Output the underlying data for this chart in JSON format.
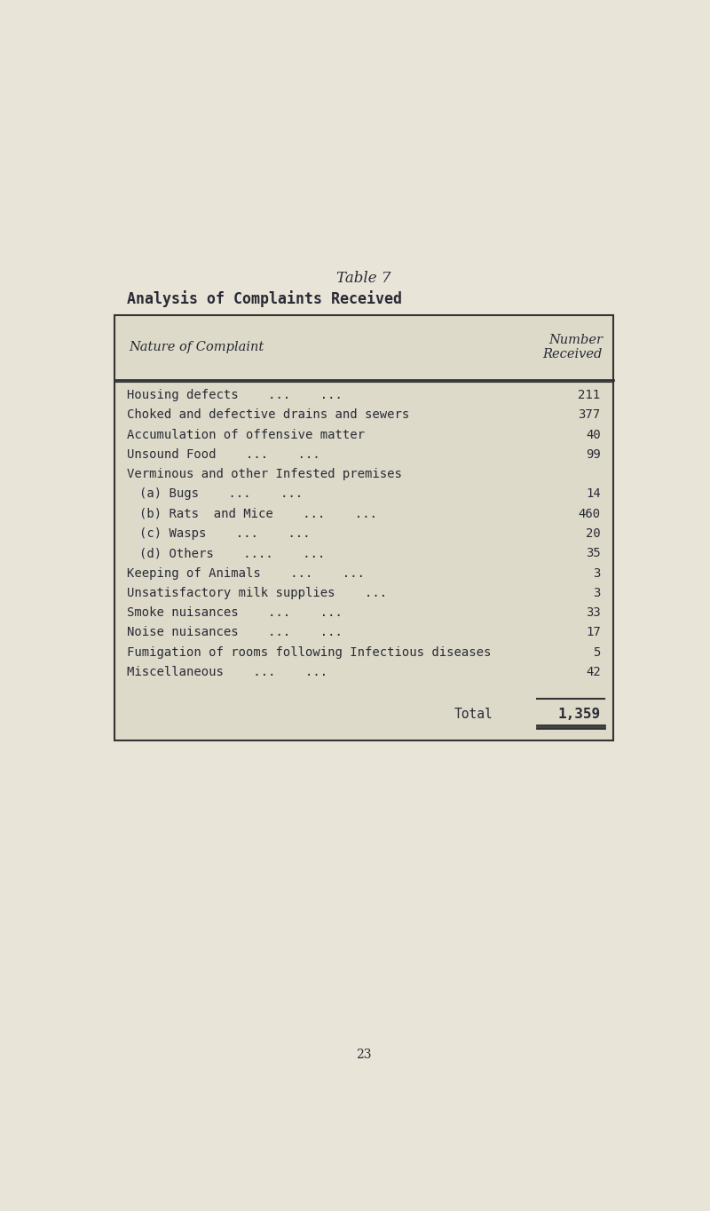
{
  "title": "Table 7",
  "subtitle": "Analysis of Complaints Received",
  "col_header_left": "Nature of Complaint",
  "col_header_right": "Number\nReceived",
  "rows": [
    {
      "label": "Housing defects    ...    ...",
      "value": "211",
      "indent": 0
    },
    {
      "label": "Choked and defective drains and sewers",
      "value": "377",
      "indent": 0
    },
    {
      "label": "Accumulation of offensive matter",
      "value": "40",
      "indent": 0
    },
    {
      "label": "Unsound Food    ...    ...",
      "value": "99",
      "indent": 0
    },
    {
      "label": "Verminous and other Infested premises",
      "value": "",
      "indent": 0
    },
    {
      "label": "(a) Bugs    ...    ...",
      "value": "14",
      "indent": 1
    },
    {
      "label": "(b) Rats  and Mice    ...    ...",
      "value": "460",
      "indent": 1
    },
    {
      "label": "(c) Wasps    ...    ...",
      "value": "20",
      "indent": 1
    },
    {
      "label": "(d) Others    ....    ...",
      "value": "35",
      "indent": 1
    },
    {
      "label": "Keeping of Animals    ...    ...",
      "value": "3",
      "indent": 0
    },
    {
      "label": "Unsatisfactory milk supplies    ...",
      "value": "3",
      "indent": 0
    },
    {
      "label": "Smoke nuisances    ...    ...",
      "value": "33",
      "indent": 0
    },
    {
      "label": "Noise nuisances    ...    ...",
      "value": "17",
      "indent": 0
    },
    {
      "label": "Fumigation of rooms following Infectious diseases",
      "value": "5",
      "indent": 0
    },
    {
      "label": "Miscellaneous    ...    ...",
      "value": "42",
      "indent": 0
    }
  ],
  "total_label": "Total",
  "total_value": "1,359",
  "page_number": "23",
  "bg_color": "#e8e4d8",
  "table_bg": "#dddac9",
  "text_color": "#2a2a35",
  "border_color": "#333333",
  "font_size_title": 12,
  "font_size_subtitle": 12,
  "font_size_header": 10.5,
  "font_size_row": 10,
  "font_size_page": 10
}
